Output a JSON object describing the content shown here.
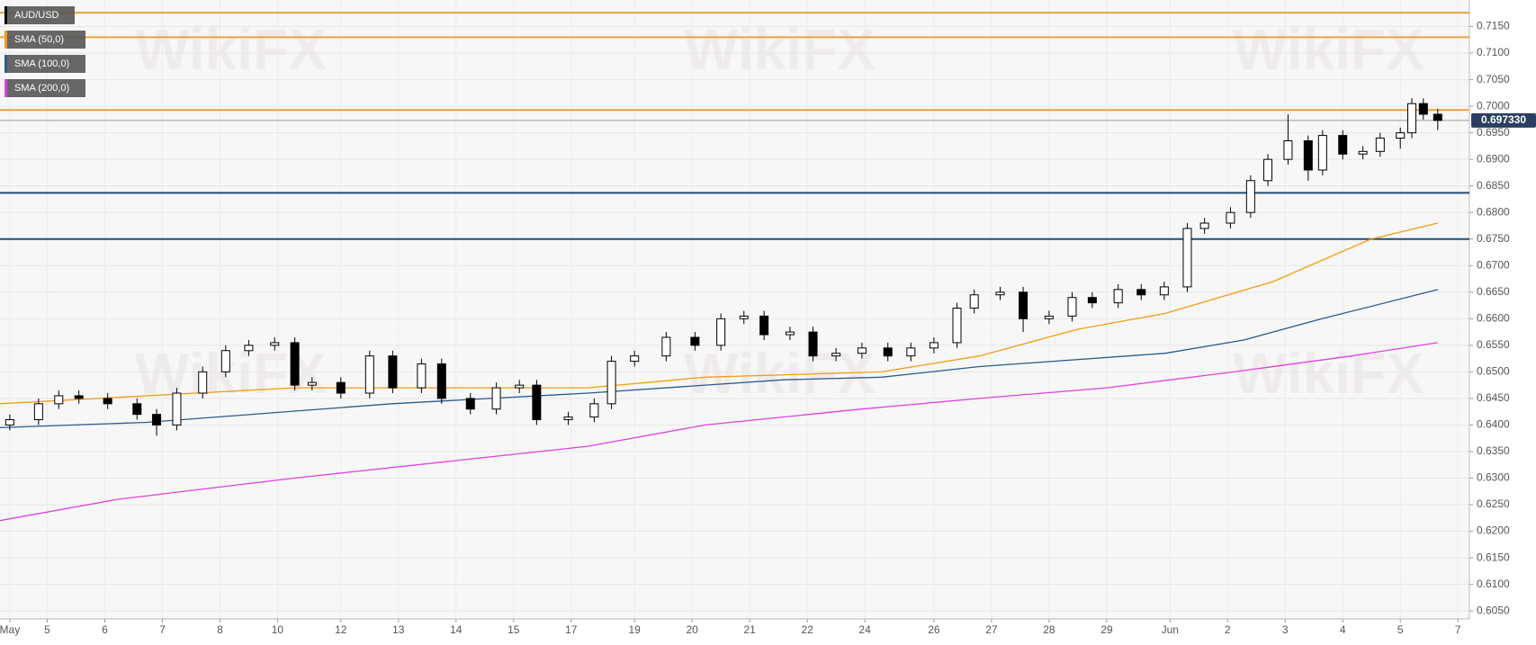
{
  "chart_data": {
    "type": "candlestick",
    "watermark": "WikiFX",
    "xlim": [
      0.18,
      25.7
    ],
    "ylim": [
      0.6035,
      0.72
    ],
    "grid": true,
    "xticks": [
      {
        "value": 0.35,
        "label": "May"
      },
      {
        "value": 1,
        "label": "5"
      },
      {
        "value": 2,
        "label": "6"
      },
      {
        "value": 3,
        "label": "7"
      },
      {
        "value": 4,
        "label": "8"
      },
      {
        "value": 5,
        "label": "10"
      },
      {
        "value": 6.1,
        "label": "12"
      },
      {
        "value": 7.1,
        "label": "13"
      },
      {
        "value": 8.1,
        "label": "14"
      },
      {
        "value": 9.1,
        "label": "15"
      },
      {
        "value": 10.1,
        "label": "17"
      },
      {
        "value": 11.2,
        "label": "19"
      },
      {
        "value": 12.2,
        "label": "20"
      },
      {
        "value": 13.2,
        "label": "21"
      },
      {
        "value": 14.2,
        "label": "22"
      },
      {
        "value": 15.2,
        "label": "24"
      },
      {
        "value": 16.4,
        "label": "26"
      },
      {
        "value": 17.4,
        "label": "27"
      },
      {
        "value": 18.4,
        "label": "28"
      },
      {
        "value": 19.4,
        "label": "29"
      },
      {
        "value": 20.5,
        "label": "Jun"
      },
      {
        "value": 21.5,
        "label": "2"
      },
      {
        "value": 22.5,
        "label": "3"
      },
      {
        "value": 23.5,
        "label": "4"
      },
      {
        "value": 24.5,
        "label": "5"
      },
      {
        "value": 25.5,
        "label": "7"
      }
    ],
    "yticks": [
      {
        "value": 0.605,
        "label": "0.6050"
      },
      {
        "value": 0.61,
        "label": "0.6100"
      },
      {
        "value": 0.615,
        "label": "0.6150"
      },
      {
        "value": 0.62,
        "label": "0.6200"
      },
      {
        "value": 0.625,
        "label": "0.6250"
      },
      {
        "value": 0.63,
        "label": "0.6300"
      },
      {
        "value": 0.635,
        "label": "0.6350"
      },
      {
        "value": 0.64,
        "label": "0.6400"
      },
      {
        "value": 0.645,
        "label": "0.6450"
      },
      {
        "value": 0.65,
        "label": "0.6500"
      },
      {
        "value": 0.655,
        "label": "0.6550"
      },
      {
        "value": 0.66,
        "label": "0.6600"
      },
      {
        "value": 0.665,
        "label": "0.6650"
      },
      {
        "value": 0.67,
        "label": "0.6700"
      },
      {
        "value": 0.675,
        "label": "0.6750"
      },
      {
        "value": 0.68,
        "label": "0.6800"
      },
      {
        "value": 0.685,
        "label": "0.6850"
      },
      {
        "value": 0.69,
        "label": "0.6900"
      },
      {
        "value": 0.695,
        "label": "0.6950"
      },
      {
        "value": 0.7,
        "label": "0.7000"
      },
      {
        "value": 0.705,
        "label": "0.7050"
      },
      {
        "value": 0.71,
        "label": "0.7100"
      },
      {
        "value": 0.715,
        "label": "0.7150"
      }
    ],
    "candles": {
      "name": "AUD/USD",
      "color": "#000000",
      "up_color": "#ffffff",
      "down_color": "#000000",
      "x": [
        0.35,
        0.85,
        1.2,
        1.55,
        2.05,
        2.56,
        2.9,
        3.25,
        3.7,
        4.1,
        4.5,
        4.95,
        5.3,
        5.6,
        6.1,
        6.6,
        7.0,
        7.5,
        7.85,
        8.35,
        8.8,
        9.2,
        9.5,
        10.05,
        10.5,
        10.8,
        11.2,
        11.75,
        12.25,
        12.7,
        13.1,
        13.45,
        13.9,
        14.3,
        14.7,
        15.15,
        15.6,
        16.0,
        16.4,
        16.8,
        17.1,
        17.55,
        17.95,
        18.4,
        18.8,
        19.15,
        19.6,
        20.0,
        20.4,
        20.8,
        21.1,
        21.55,
        21.9,
        22.2,
        22.55,
        22.9,
        23.15,
        23.5,
        23.85,
        24.15,
        24.5,
        24.7,
        24.9,
        25.15
      ],
      "open": [
        0.64,
        0.641,
        0.644,
        0.6455,
        0.645,
        0.644,
        0.642,
        0.64,
        0.646,
        0.65,
        0.654,
        0.655,
        0.6555,
        0.6475,
        0.648,
        0.646,
        0.653,
        0.647,
        0.6515,
        0.645,
        0.643,
        0.647,
        0.6475,
        0.641,
        0.6415,
        0.644,
        0.652,
        0.653,
        0.6565,
        0.655,
        0.66,
        0.6605,
        0.657,
        0.6575,
        0.653,
        0.6535,
        0.6545,
        0.653,
        0.6545,
        0.6555,
        0.662,
        0.6645,
        0.665,
        0.66,
        0.6605,
        0.664,
        0.663,
        0.6655,
        0.6645,
        0.666,
        0.677,
        0.678,
        0.68,
        0.686,
        0.69,
        0.6935,
        0.688,
        0.6945,
        0.691,
        0.6915,
        0.694,
        0.695,
        0.7005,
        0.6985
      ],
      "high": [
        0.642,
        0.645,
        0.6465,
        0.6465,
        0.646,
        0.645,
        0.643,
        0.647,
        0.651,
        0.655,
        0.656,
        0.6565,
        0.6565,
        0.649,
        0.649,
        0.654,
        0.654,
        0.6525,
        0.6525,
        0.646,
        0.648,
        0.6485,
        0.6485,
        0.6425,
        0.645,
        0.653,
        0.654,
        0.6575,
        0.6575,
        0.661,
        0.6615,
        0.6615,
        0.6585,
        0.6585,
        0.6545,
        0.6555,
        0.6555,
        0.6555,
        0.6565,
        0.663,
        0.6655,
        0.666,
        0.666,
        0.6615,
        0.665,
        0.665,
        0.6665,
        0.6665,
        0.667,
        0.678,
        0.679,
        0.681,
        0.687,
        0.691,
        0.6985,
        0.6945,
        0.6955,
        0.6955,
        0.6925,
        0.695,
        0.696,
        0.7015,
        0.7015,
        0.6995
      ],
      "low": [
        0.639,
        0.64,
        0.643,
        0.644,
        0.643,
        0.641,
        0.638,
        0.639,
        0.645,
        0.649,
        0.653,
        0.654,
        0.6465,
        0.6465,
        0.645,
        0.645,
        0.646,
        0.646,
        0.644,
        0.642,
        0.642,
        0.646,
        0.64,
        0.64,
        0.6405,
        0.643,
        0.651,
        0.652,
        0.654,
        0.654,
        0.659,
        0.656,
        0.656,
        0.652,
        0.652,
        0.6525,
        0.652,
        0.652,
        0.6535,
        0.6545,
        0.661,
        0.6635,
        0.6575,
        0.659,
        0.6595,
        0.662,
        0.662,
        0.6635,
        0.6635,
        0.665,
        0.676,
        0.677,
        0.679,
        0.685,
        0.689,
        0.686,
        0.687,
        0.69,
        0.69,
        0.6905,
        0.692,
        0.694,
        0.6975,
        0.6955
      ],
      "close": [
        0.641,
        0.644,
        0.6455,
        0.645,
        0.644,
        0.642,
        0.64,
        0.646,
        0.65,
        0.654,
        0.655,
        0.6555,
        0.6475,
        0.648,
        0.646,
        0.653,
        0.647,
        0.6515,
        0.645,
        0.643,
        0.647,
        0.6475,
        0.641,
        0.6415,
        0.644,
        0.652,
        0.653,
        0.6565,
        0.655,
        0.66,
        0.6605,
        0.657,
        0.6575,
        0.653,
        0.6535,
        0.6545,
        0.653,
        0.6545,
        0.6555,
        0.662,
        0.6645,
        0.665,
        0.66,
        0.6605,
        0.664,
        0.663,
        0.6655,
        0.6645,
        0.666,
        0.677,
        0.678,
        0.68,
        0.686,
        0.69,
        0.6935,
        0.688,
        0.6945,
        0.691,
        0.6915,
        0.694,
        0.695,
        0.7005,
        0.6985,
        0.69733
      ]
    },
    "lines": [
      {
        "name": "SMA (50,0)",
        "color": "#f39c12",
        "x": [
          0.18,
          5.29,
          10.39,
          12.43,
          15.49,
          17.19,
          18.89,
          20.42,
          22.29,
          23.99,
          25.15
        ],
        "values": [
          0.644,
          0.647,
          0.647,
          0.649,
          0.65,
          0.653,
          0.658,
          0.661,
          0.667,
          0.675,
          0.678
        ]
      },
      {
        "name": "SMA (100,0)",
        "color": "#2c5a8c",
        "x": [
          0.18,
          2.73,
          6.99,
          10.39,
          13.79,
          15.49,
          17.19,
          20.42,
          21.78,
          23.14,
          25.15
        ],
        "values": [
          0.6395,
          0.6405,
          0.644,
          0.646,
          0.6485,
          0.649,
          0.651,
          0.6535,
          0.656,
          0.66,
          0.6655
        ]
      },
      {
        "name": "SMA (200,0)",
        "color": "#e040e0",
        "x": [
          0.18,
          2.22,
          5.29,
          7.84,
          10.39,
          12.43,
          15.15,
          17.19,
          19.4,
          21.61,
          23.65,
          25.15
        ],
        "values": [
          0.622,
          0.626,
          0.63,
          0.633,
          0.636,
          0.64,
          0.643,
          0.645,
          0.647,
          0.65,
          0.653,
          0.6555
        ]
      }
    ],
    "levels": [
      {
        "value": 0.7176,
        "color": "#e8a33d"
      },
      {
        "value": 0.713,
        "color": "#e8a33d"
      },
      {
        "value": 0.6993,
        "color": "#e8a33d"
      },
      {
        "value": 0.6837,
        "color": "#1f4e79"
      },
      {
        "value": 0.675,
        "color": "#1f4e79"
      }
    ],
    "last_price": {
      "value": 0.69733,
      "label": "0.697330",
      "color": "#2a3f5f"
    }
  }
}
